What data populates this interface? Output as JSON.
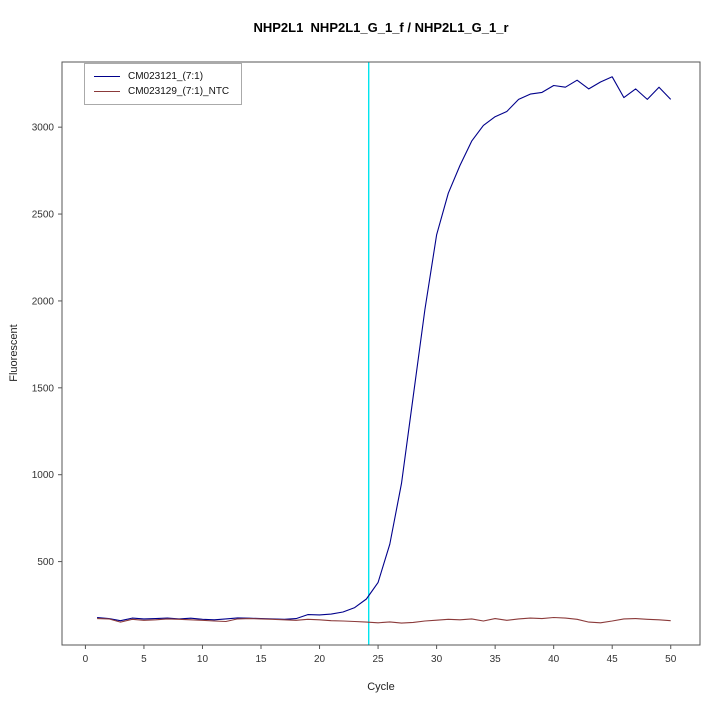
{
  "chart_data": {
    "type": "line",
    "title": "NHP2L1  NHP2L1_G_1_f / NHP2L1_G_1_r",
    "xlabel": "Cycle",
    "ylabel": "Fluorescent",
    "xlim": [
      -2,
      52.5
    ],
    "ylim": [
      20,
      3375
    ],
    "xticks": [
      0,
      5,
      10,
      15,
      20,
      25,
      30,
      35,
      40,
      45,
      50
    ],
    "yticks": [
      500,
      1000,
      1500,
      2000,
      2500,
      3000
    ],
    "grid": false,
    "legend_position": "top-left",
    "axis_color": "#555555",
    "tick_label_color": "#333333",
    "threshold_cycle": 24.2,
    "threshold_color": "#00e5ee",
    "x": [
      1,
      2,
      3,
      4,
      5,
      6,
      7,
      8,
      9,
      10,
      11,
      12,
      13,
      14,
      15,
      16,
      17,
      18,
      19,
      20,
      21,
      22,
      23,
      24,
      25,
      26,
      27,
      28,
      29,
      30,
      31,
      32,
      33,
      34,
      35,
      36,
      37,
      38,
      39,
      40,
      41,
      42,
      43,
      44,
      45,
      46,
      47,
      48,
      49,
      50
    ],
    "series": [
      {
        "name": "CM023121_(7:1)",
        "color": "#00008b",
        "values": [
          178,
          172,
          160,
          175,
          170,
          172,
          175,
          170,
          174,
          168,
          165,
          170,
          176,
          174,
          172,
          170,
          168,
          172,
          195,
          193,
          198,
          210,
          235,
          285,
          380,
          600,
          950,
          1450,
          1950,
          2380,
          2620,
          2780,
          2920,
          3010,
          3060,
          3090,
          3160,
          3190,
          3200,
          3240,
          3230,
          3270,
          3220,
          3260,
          3290,
          3170,
          3220,
          3160,
          3230,
          3160
        ]
      },
      {
        "name": "CM023129_(7:1)_NTC",
        "color": "#8b3a3a",
        "values": [
          172,
          170,
          152,
          168,
          162,
          165,
          170,
          168,
          165,
          162,
          158,
          155,
          170,
          172,
          170,
          168,
          165,
          162,
          168,
          165,
          160,
          158,
          155,
          152,
          148,
          153,
          146,
          150,
          158,
          163,
          168,
          165,
          170,
          158,
          172,
          162,
          170,
          175,
          172,
          178,
          175,
          168,
          152,
          148,
          158,
          170,
          172,
          168,
          165,
          160
        ]
      }
    ]
  }
}
